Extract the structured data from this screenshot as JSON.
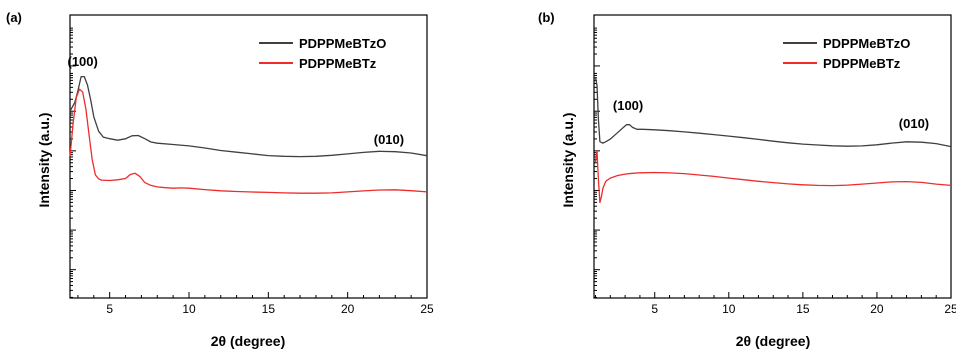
{
  "chart_data": [
    {
      "type": "line",
      "panel": "(a)",
      "xlabel": "2θ (degree)",
      "ylabel": "Intensity (a.u.)",
      "xlim": [
        2.5,
        25
      ],
      "y_scale": "log",
      "y_tick_labels": "none",
      "xticks": [
        5,
        10,
        15,
        20,
        25
      ],
      "legend_position": "top-right",
      "series": [
        {
          "name": "PDPPMeBTzO",
          "color": "#404040",
          "x": [
            2.5,
            2.8,
            3.0,
            3.2,
            3.4,
            3.6,
            3.8,
            4.0,
            4.3,
            4.6,
            5.0,
            5.5,
            6.0,
            6.4,
            6.8,
            7.2,
            7.6,
            8.0,
            9.0,
            10.0,
            11.0,
            12.0,
            13.0,
            14.0,
            15.0,
            16.0,
            17.0,
            18.0,
            19.0,
            20.0,
            21.0,
            22.0,
            23.0,
            24.0,
            25.0
          ],
          "y": [
            0.66,
            0.69,
            0.73,
            0.78,
            0.78,
            0.75,
            0.7,
            0.64,
            0.59,
            0.57,
            0.565,
            0.56,
            0.565,
            0.575,
            0.575,
            0.563,
            0.55,
            0.545,
            0.54,
            0.535,
            0.528,
            0.52,
            0.515,
            0.51,
            0.505,
            0.503,
            0.502,
            0.503,
            0.506,
            0.51,
            0.514,
            0.517,
            0.515,
            0.51,
            0.503
          ]
        },
        {
          "name": "PDPPMeBTz",
          "color": "#ee2c2c",
          "x": [
            2.5,
            2.7,
            2.9,
            3.1,
            3.3,
            3.5,
            3.7,
            3.9,
            4.1,
            4.3,
            4.5,
            5.0,
            5.5,
            6.0,
            6.3,
            6.6,
            6.9,
            7.2,
            7.6,
            8.0,
            8.5,
            9.0,
            9.5,
            10.0,
            11.0,
            12.0,
            13.0,
            14.0,
            15.0,
            16.0,
            17.0,
            18.0,
            19.0,
            20.0,
            21.0,
            22.0,
            23.0,
            24.0,
            25.0
          ],
          "y": [
            0.5,
            0.62,
            0.71,
            0.74,
            0.73,
            0.67,
            0.58,
            0.49,
            0.435,
            0.42,
            0.415,
            0.413,
            0.415,
            0.42,
            0.435,
            0.44,
            0.43,
            0.41,
            0.4,
            0.395,
            0.392,
            0.39,
            0.39,
            0.388,
            0.382,
            0.377,
            0.374,
            0.372,
            0.371,
            0.37,
            0.37,
            0.371,
            0.373,
            0.377,
            0.381,
            0.384,
            0.384,
            0.38,
            0.375
          ]
        }
      ],
      "annotations": [
        {
          "text": "(100)",
          "x": 3.3,
          "y": 0.82
        },
        {
          "text": "(010)",
          "x": 22.6,
          "y": 0.545
        }
      ]
    },
    {
      "type": "line",
      "panel": "(b)",
      "xlabel": "2θ (degree)",
      "ylabel": "Intensity (a.u.)",
      "xlim": [
        0.9,
        25
      ],
      "y_scale": "log",
      "y_tick_labels": "none",
      "xticks": [
        5,
        10,
        15,
        20,
        25
      ],
      "legend_position": "top-right",
      "series": [
        {
          "name": "PDPPMeBTzO",
          "color": "#404040",
          "x": [
            1.0,
            1.1,
            1.2,
            1.3,
            1.5,
            1.7,
            2.0,
            2.3,
            2.6,
            2.9,
            3.1,
            3.3,
            3.5,
            3.8,
            4.2,
            5.0,
            6.0,
            7.0,
            8.0,
            9.0,
            10.0,
            11.0,
            12.0,
            13.0,
            14.0,
            15.0,
            16.0,
            17.0,
            18.0,
            19.0,
            20.0,
            21.0,
            22.0,
            23.0,
            24.0,
            25.0
          ],
          "y": [
            0.78,
            0.75,
            0.63,
            0.55,
            0.545,
            0.55,
            0.56,
            0.575,
            0.59,
            0.605,
            0.615,
            0.615,
            0.605,
            0.598,
            0.597,
            0.594,
            0.59,
            0.585,
            0.58,
            0.575,
            0.57,
            0.565,
            0.56,
            0.555,
            0.55,
            0.546,
            0.543,
            0.54,
            0.538,
            0.538,
            0.541,
            0.546,
            0.55,
            0.548,
            0.543,
            0.535
          ]
        },
        {
          "name": "PDPPMeBTz",
          "color": "#ee2c2c",
          "x": [
            1.0,
            1.1,
            1.2,
            1.3,
            1.4,
            1.5,
            1.7,
            2.0,
            2.5,
            3.0,
            3.5,
            4.0,
            5.0,
            6.0,
            7.0,
            8.0,
            9.0,
            10.0,
            11.0,
            12.0,
            13.0,
            14.0,
            15.0,
            16.0,
            17.0,
            18.0,
            19.0,
            20.0,
            21.0,
            22.0,
            23.0,
            24.0,
            25.0
          ],
          "y": [
            0.48,
            0.52,
            0.42,
            0.34,
            0.36,
            0.39,
            0.415,
            0.425,
            0.433,
            0.437,
            0.439,
            0.44,
            0.441,
            0.44,
            0.438,
            0.434,
            0.43,
            0.425,
            0.42,
            0.415,
            0.41,
            0.405,
            0.401,
            0.398,
            0.396,
            0.397,
            0.4,
            0.404,
            0.408,
            0.41,
            0.408,
            0.403,
            0.398
          ]
        }
      ],
      "annotations": [
        {
          "text": "(100)",
          "x": 3.2,
          "y": 0.665
        },
        {
          "text": "(010)",
          "x": 22.5,
          "y": 0.6
        }
      ]
    }
  ]
}
